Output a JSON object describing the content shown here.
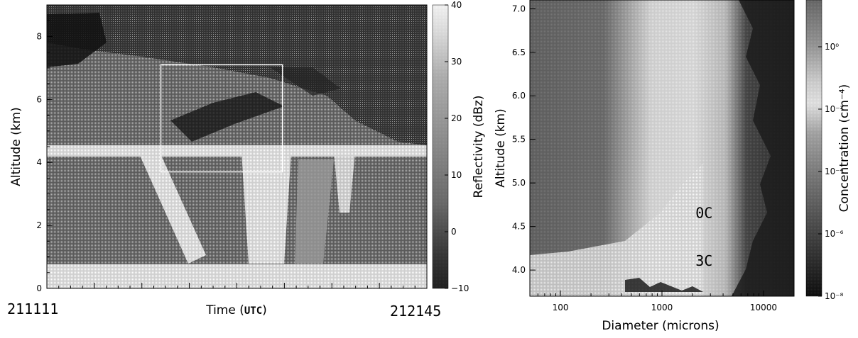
{
  "chart_data": [
    {
      "type": "heatmap",
      "xlabel_prefix": "Time (",
      "xlabel_unit": "UTC",
      "xlabel_suffix": ")",
      "ylabel": "Altitude (km)",
      "x_start_label": "211111",
      "x_end_label": "212145",
      "yticks": [
        0,
        2,
        4,
        6,
        8
      ],
      "ylim": [
        0,
        9
      ],
      "colorbar": {
        "label": "Reflectivity (dBz)",
        "ticks": [
          -10,
          0,
          10,
          20,
          30,
          40
        ],
        "range": [
          -10,
          40
        ]
      },
      "highlight_box": {
        "x_fraction": [
          0.3,
          0.62
        ],
        "y_km": [
          3.7,
          7.1
        ]
      }
    },
    {
      "type": "heatmap",
      "xlabel": "Diameter (microns)",
      "ylabel": "Altitude (km)",
      "xscale": "log",
      "xticks": [
        100,
        1000,
        10000
      ],
      "xtick_labels": [
        "100",
        "1000",
        "10000"
      ],
      "xlim": [
        50,
        20000
      ],
      "yticks": [
        4.0,
        4.5,
        5.0,
        5.5,
        6.0,
        6.5,
        7.0
      ],
      "ytick_labels": [
        "4.0",
        "4.5",
        "5.0",
        "5.5",
        "6.0",
        "6.5",
        "7.0"
      ],
      "ylim": [
        3.7,
        7.1
      ],
      "annotations": [
        {
          "text": "0C",
          "x": 2600,
          "y": 4.6
        },
        {
          "text": "3C",
          "x": 2600,
          "y": 4.05
        }
      ],
      "colorbar": {
        "label": "Concentration (cm⁻⁴)",
        "ticks": [
          "10⁻⁸",
          "10⁻⁶",
          "10⁻⁴",
          "10⁻²",
          "10⁰"
        ],
        "tick_values_log10": [
          -8,
          -6,
          -4,
          -2,
          0
        ],
        "range_log10": [
          -8,
          1.5
        ]
      }
    }
  ]
}
